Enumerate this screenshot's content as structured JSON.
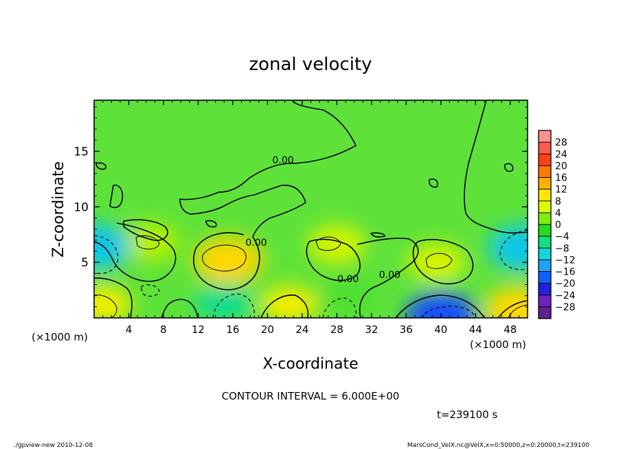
{
  "chart_data": {
    "type": "heatmap",
    "title": "zonal velocity",
    "xlabel": "X-coordinate",
    "ylabel": "Z-coordinate",
    "x_unit_label": "(×1000 m)",
    "x_unit_label_right": "(×1000 m)",
    "xlim": [
      0,
      50
    ],
    "ylim": [
      0,
      19.6
    ],
    "x_ticks": [
      {
        "value": 4,
        "label": "4"
      },
      {
        "value": 8,
        "label": "8"
      },
      {
        "value": 12,
        "label": "12"
      },
      {
        "value": 16,
        "label": "16"
      },
      {
        "value": 20,
        "label": "20"
      },
      {
        "value": 24,
        "label": "24"
      },
      {
        "value": 28,
        "label": "28"
      },
      {
        "value": 32,
        "label": "32"
      },
      {
        "value": 36,
        "label": "36"
      },
      {
        "value": 40,
        "label": "40"
      },
      {
        "value": 44,
        "label": "44"
      },
      {
        "value": 48,
        "label": "48"
      }
    ],
    "y_ticks": [
      {
        "value": 5,
        "label": "5"
      },
      {
        "value": 10,
        "label": "10"
      },
      {
        "value": 15,
        "label": "15"
      }
    ],
    "colorbar": {
      "levels": [
        "28",
        "24",
        "20",
        "16",
        "12",
        "8",
        "4",
        "0",
        "−4",
        "−8",
        "−12",
        "−16",
        "−20",
        "−24",
        "−28"
      ],
      "colors": [
        "#ff9090",
        "#ff5a50",
        "#ff4010",
        "#ff7a00",
        "#ffb000",
        "#ffe600",
        "#d8ff00",
        "#80ee10",
        "#22dd22",
        "#10e080",
        "#10d8d8",
        "#20a0ff",
        "#1060ff",
        "#2020e0",
        "#7020c0",
        "#602090"
      ]
    },
    "contour_labels": [
      {
        "text": "0.00",
        "x": 21.8,
        "z": 13.9
      },
      {
        "text": "0.00",
        "x": 18.7,
        "z": 6.5
      },
      {
        "text": "0.00",
        "x": 29.3,
        "z": 3.2
      },
      {
        "text": "0.00",
        "x": 34.1,
        "z": 3.6
      }
    ],
    "field_features": [
      {
        "kind": "max",
        "x": 15.5,
        "z": 5.2,
        "value": 12
      },
      {
        "kind": "max",
        "x": 22.5,
        "z": 1.2,
        "value": 10
      },
      {
        "kind": "max",
        "x": 1.0,
        "z": 1.2,
        "value": 10
      },
      {
        "kind": "max",
        "x": 28.0,
        "z": 6.6,
        "value": 8
      },
      {
        "kind": "max",
        "x": 39.5,
        "z": 5.0,
        "value": 8
      },
      {
        "kind": "max",
        "x": 6.5,
        "z": 6.8,
        "value": 6
      },
      {
        "kind": "max",
        "x": 49.0,
        "z": 0.7,
        "value": 12
      },
      {
        "kind": "min",
        "x": 40.0,
        "z": 0.2,
        "value": -18
      },
      {
        "kind": "min",
        "x": 0.2,
        "z": 6.4,
        "value": -12
      },
      {
        "kind": "min",
        "x": 49.5,
        "z": 6.3,
        "value": -12
      },
      {
        "kind": "min",
        "x": 15.0,
        "z": 1.4,
        "value": -6
      },
      {
        "kind": "min",
        "x": 29.5,
        "z": 2.0,
        "value": -5
      }
    ],
    "grid": false,
    "legend": "right"
  },
  "annotations": {
    "contour_interval": "CONTOUR INTERVAL = 6.000E+00",
    "time": "t=239100 s",
    "footer_left": "./gpview-new  2010-12-08",
    "footer_right": "MarsCond_VelX.nc@VelX,x=0:50000,z=0:20000,t=239100"
  }
}
